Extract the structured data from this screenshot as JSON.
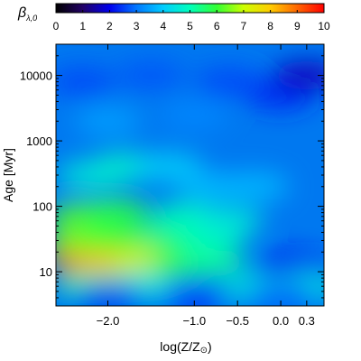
{
  "chart_data": {
    "type": "heatmap",
    "colorbar": {
      "label_symbol": "β",
      "label_subscript": "λ,0",
      "range": [
        0,
        10
      ],
      "ticks": [
        0,
        1,
        2,
        3,
        4,
        5,
        6,
        7,
        8,
        9,
        10
      ],
      "tick_labels": [
        "0",
        "1",
        "2",
        "3",
        "4",
        "5",
        "6",
        "7",
        "8",
        "9",
        "10"
      ],
      "colormap": [
        "#000000",
        "#220066",
        "#0000ee",
        "#0077ff",
        "#00ccff",
        "#00ffbb",
        "#33ff33",
        "#ccff00",
        "#ffcc00",
        "#ff6600",
        "#ff0000"
      ],
      "position": "top"
    },
    "x_axis": {
      "label_text": "log(Z/Z",
      "label_symbol": "⊙",
      "label_close": ")",
      "range": [
        -2.6,
        0.5
      ],
      "ticks": [
        -2.0,
        -1.0,
        -0.5,
        0.0,
        0.3
      ],
      "tick_labels": [
        "−2.0",
        "−1.0",
        "−0.5",
        "0.0",
        "0.3"
      ]
    },
    "y_axis": {
      "label": "Age [Myr]",
      "scale": "log",
      "range": [
        3,
        30000
      ],
      "ticks": [
        10,
        100,
        1000,
        10000
      ],
      "tick_labels": [
        "10",
        "100",
        "1000",
        "10000"
      ]
    },
    "grid": false,
    "regions": [
      {
        "x": -2.3,
        "y": 15,
        "value": 9.0
      },
      {
        "x": -2.0,
        "y": 15,
        "value": 8.3
      },
      {
        "x": -1.6,
        "y": 15,
        "value": 7.2
      },
      {
        "x": -1.1,
        "y": 14,
        "value": 6.0
      },
      {
        "x": -0.8,
        "y": 14,
        "value": 5.2
      },
      {
        "x": -2.3,
        "y": 30,
        "value": 6.5
      },
      {
        "x": -1.9,
        "y": 35,
        "value": 6.0
      },
      {
        "x": -1.3,
        "y": 35,
        "value": 5.5
      },
      {
        "x": -0.8,
        "y": 35,
        "value": 5.0
      },
      {
        "x": -2.3,
        "y": 70,
        "value": 6.2
      },
      {
        "x": -1.9,
        "y": 80,
        "value": 5.8
      },
      {
        "x": -1.1,
        "y": 70,
        "value": 5.0
      },
      {
        "x": -0.6,
        "y": 60,
        "value": 4.6
      },
      {
        "x": -2.2,
        "y": 300,
        "value": 4.6
      },
      {
        "x": -1.8,
        "y": 400,
        "value": 4.8
      },
      {
        "x": -1.3,
        "y": 400,
        "value": 4.1
      },
      {
        "x": -0.8,
        "y": 200,
        "value": 3.8
      },
      {
        "x": -0.3,
        "y": 200,
        "value": 3.8
      },
      {
        "x": -2.0,
        "y": 2000,
        "value": 3.5
      },
      {
        "x": -1.0,
        "y": 2500,
        "value": 3.2
      },
      {
        "x": -2.3,
        "y": 8000,
        "value": 2.6
      },
      {
        "x": -1.5,
        "y": 10000,
        "value": 2.7
      },
      {
        "x": -0.6,
        "y": 8000,
        "value": 2.6
      },
      {
        "x": 0.0,
        "y": 5000,
        "value": 2.3
      },
      {
        "x": 0.3,
        "y": 10000,
        "value": 1.6
      },
      {
        "x": 0.1,
        "y": 12,
        "value": 2.0
      },
      {
        "x": 0.3,
        "y": 10,
        "value": 2.2
      },
      {
        "x": 0.3,
        "y": 6,
        "value": 4.5
      },
      {
        "x": -0.3,
        "y": 5.5,
        "value": 4.5
      },
      {
        "x": -1.6,
        "y": 6,
        "value": 4.6
      },
      {
        "x": -2.2,
        "y": 6,
        "value": 5.2
      },
      {
        "x": -2.0,
        "y": 4,
        "value": 2.4
      },
      {
        "x": -1.0,
        "y": 3.8,
        "value": 2.5
      },
      {
        "x": 0.0,
        "y": 4,
        "value": 2.8
      }
    ]
  }
}
